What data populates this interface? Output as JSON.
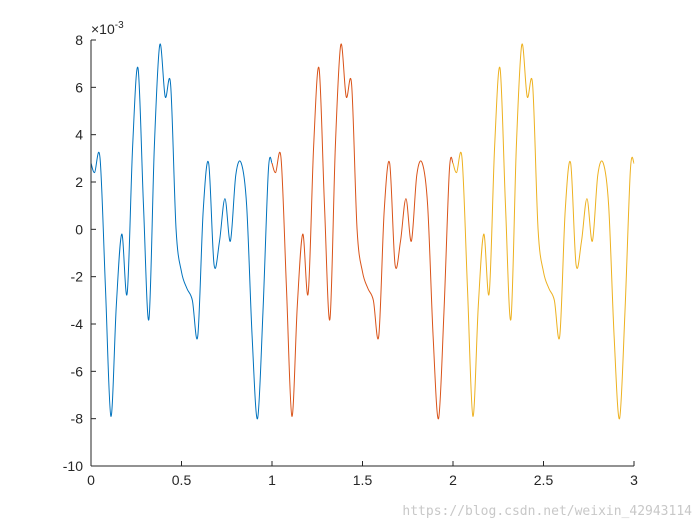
{
  "chart_data": {
    "type": "line",
    "title": "",
    "xlabel": "",
    "ylabel": "",
    "xlim": [
      0,
      3
    ],
    "ylim": [
      -10,
      8
    ],
    "y_multiplier": "×10",
    "y_exponent": "-3",
    "grid": false,
    "xticks": [
      0,
      0.5,
      1,
      1.5,
      2,
      2.5,
      3
    ],
    "xtick_labels": [
      "0",
      "0.5",
      "1",
      "1.5",
      "2",
      "2.5",
      "3"
    ],
    "yticks": [
      -10,
      -8,
      -6,
      -4,
      -2,
      0,
      2,
      4,
      6,
      8
    ],
    "ytick_labels": [
      "-10",
      "-8",
      "-6",
      "-4",
      "-2",
      "0",
      "2",
      "4",
      "6",
      "8"
    ],
    "series": [
      {
        "color": "#0072BD",
        "x": [
          0,
          0.02,
          0.05,
          0.08,
          0.11,
          0.14,
          0.17,
          0.2,
          0.23,
          0.26,
          0.29,
          0.32,
          0.35,
          0.38,
          0.41,
          0.44,
          0.47,
          0.5,
          0.53,
          0.56,
          0.59,
          0.62,
          0.65,
          0.68,
          0.71,
          0.74,
          0.77,
          0.8,
          0.83,
          0.86,
          0.89,
          0.92,
          0.95,
          0.98,
          1.0
        ],
        "y": [
          2.8,
          2.4,
          3.0,
          -2.5,
          -7.9,
          -3.2,
          -0.2,
          -2.7,
          3.5,
          6.8,
          1.0,
          -3.8,
          3.5,
          7.8,
          5.6,
          6.1,
          0.0,
          -1.8,
          -2.5,
          -3.0,
          -4.5,
          0.8,
          2.8,
          -1.5,
          -0.5,
          1.3,
          -0.5,
          2.3,
          2.8,
          1.0,
          -4.5,
          -8.0,
          -3.5,
          2.5,
          2.8
        ]
      },
      {
        "color": "#D95319",
        "x": [
          1.0,
          1.02,
          1.05,
          1.08,
          1.11,
          1.14,
          1.17,
          1.2,
          1.23,
          1.26,
          1.29,
          1.32,
          1.35,
          1.38,
          1.41,
          1.44,
          1.47,
          1.5,
          1.53,
          1.56,
          1.59,
          1.62,
          1.65,
          1.68,
          1.71,
          1.74,
          1.77,
          1.8,
          1.83,
          1.86,
          1.89,
          1.92,
          1.95,
          1.98,
          2.0
        ],
        "y": [
          2.8,
          2.4,
          3.0,
          -2.5,
          -7.9,
          -3.2,
          -0.2,
          -2.7,
          3.5,
          6.8,
          1.0,
          -3.8,
          3.5,
          7.8,
          5.6,
          6.1,
          0.0,
          -1.8,
          -2.5,
          -3.0,
          -4.5,
          0.8,
          2.8,
          -1.5,
          -0.5,
          1.3,
          -0.5,
          2.3,
          2.8,
          1.0,
          -4.5,
          -8.0,
          -3.5,
          2.5,
          2.8
        ]
      },
      {
        "color": "#EDB120",
        "x": [
          2.0,
          2.02,
          2.05,
          2.08,
          2.11,
          2.14,
          2.17,
          2.2,
          2.23,
          2.26,
          2.29,
          2.32,
          2.35,
          2.38,
          2.41,
          2.44,
          2.47,
          2.5,
          2.53,
          2.56,
          2.59,
          2.62,
          2.65,
          2.68,
          2.71,
          2.74,
          2.77,
          2.8,
          2.83,
          2.86,
          2.89,
          2.92,
          2.95,
          2.98,
          3.0
        ],
        "y": [
          2.8,
          2.4,
          3.0,
          -2.5,
          -7.9,
          -3.2,
          -0.2,
          -2.7,
          3.5,
          6.8,
          1.0,
          -3.8,
          3.5,
          7.8,
          5.6,
          6.1,
          0.0,
          -1.8,
          -2.5,
          -3.0,
          -4.5,
          0.8,
          2.8,
          -1.5,
          -0.5,
          1.3,
          -0.5,
          2.3,
          2.8,
          1.0,
          -4.5,
          -8.0,
          -3.5,
          2.5,
          2.8
        ]
      }
    ]
  },
  "watermark": "https://blog.csdn.net/weixin_42943114"
}
